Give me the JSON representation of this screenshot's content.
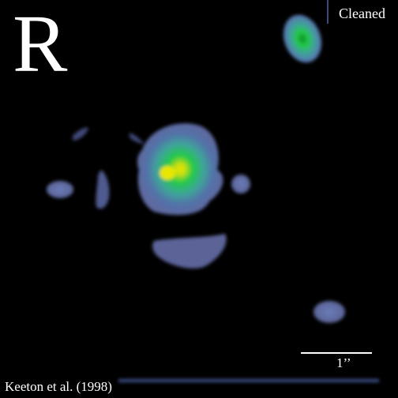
{
  "image": {
    "band": "R",
    "status": "Cleaned",
    "credit": "Keeton et al. (1998)",
    "scale_label": "1’’"
  },
  "colors": {
    "background": "#000000",
    "faint_emission": "#5f6aa0",
    "mid_emission": "#3f9f9a",
    "bright_emission": "#22c94a",
    "peak_emission": "#e6e600",
    "text": "#ffffff"
  }
}
